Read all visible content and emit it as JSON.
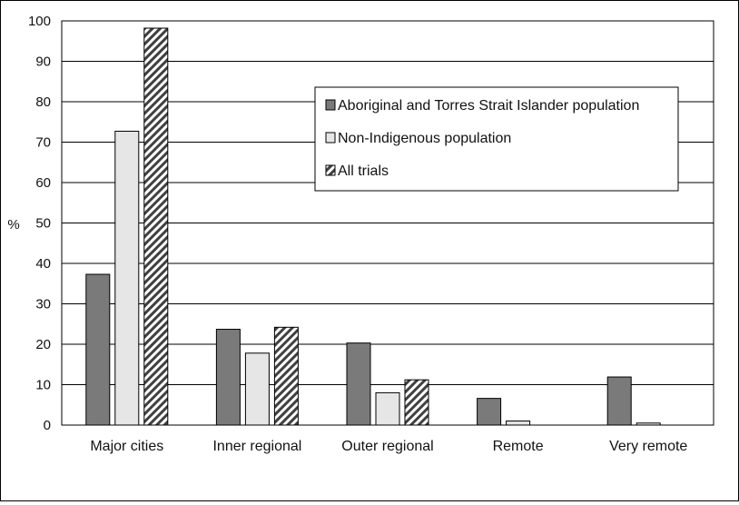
{
  "chart_data": {
    "type": "bar",
    "title": "",
    "xlabel": "",
    "ylabel": "%",
    "ylim": [
      0,
      100
    ],
    "yticks": [
      0,
      10,
      20,
      30,
      40,
      50,
      60,
      70,
      80,
      90,
      100
    ],
    "grid": true,
    "legend_position": "top-right",
    "categories": [
      "Major cities",
      "Inner regional",
      "Outer regional",
      "Remote",
      "Very remote"
    ],
    "series": [
      {
        "name": "Aboriginal and Torres Strait Islander population",
        "values": [
          37.3,
          23.7,
          20.3,
          6.6,
          11.9
        ],
        "color": "#7a7a7a",
        "pattern": "solid"
      },
      {
        "name": "Non-Indigenous population",
        "values": [
          72.7,
          17.8,
          8.0,
          1.0,
          0.5
        ],
        "color": "#e6e6e6",
        "pattern": "solid"
      },
      {
        "name": "All trials",
        "values": [
          98.2,
          24.2,
          11.2,
          0.0,
          0.0
        ],
        "color": "#ffffff",
        "pattern": "diagonal-hatch"
      }
    ]
  }
}
